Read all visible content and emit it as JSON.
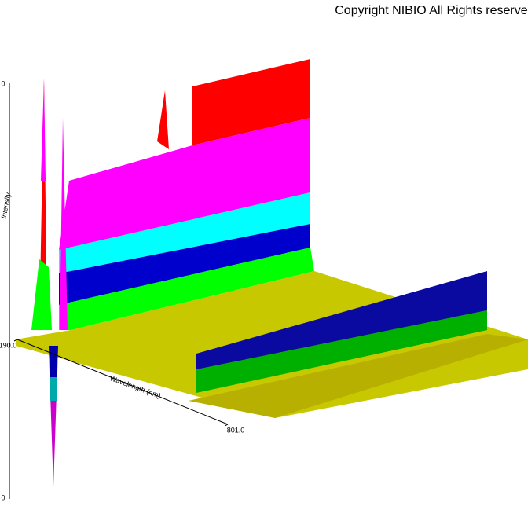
{
  "chart_data": {
    "type": "surface",
    "annotation": "Copyright NIBIO All Rights reserved.",
    "x_label": "Wavelength (nm)",
    "y_label": "Intensity",
    "xlim": [
      190,
      801
    ],
    "xticks": [
      {
        "value": 190,
        "label": "190.0"
      },
      {
        "value": 801,
        "label": "801.0"
      }
    ],
    "edge_labels": [
      "0",
      "0"
    ]
  }
}
